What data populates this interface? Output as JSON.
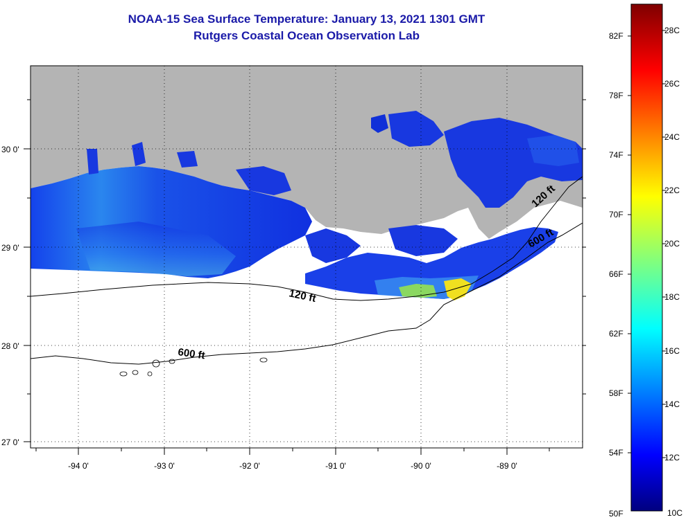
{
  "title": {
    "line1": "NOAA-15 Sea Surface Temperature:  January 13, 2021 1301 GMT",
    "line2": "Rutgers Coastal Ocean Observation Lab"
  },
  "map": {
    "lon_labels": [
      "-94 0'",
      "-93 0'",
      "-92 0'",
      "-91 0'",
      "-90 0'",
      "-89 0'"
    ],
    "lat_labels": [
      "30 0'",
      "29 0'",
      "28 0'",
      "27 0'"
    ],
    "contour_labels": [
      "120 ft",
      "600 ft",
      "120 ft",
      "600 ft"
    ],
    "colors": {
      "land": "#b4b4b4",
      "no_data": "#ffffff",
      "water_primary": "#1a3cf0"
    }
  },
  "colorbar": {
    "fahrenheit": [
      "82F",
      "78F",
      "74F",
      "70F",
      "66F",
      "62F",
      "58F",
      "54F",
      "50F"
    ],
    "celsius": [
      "28C",
      "26C",
      "24C",
      "22C",
      "20C",
      "18C",
      "16C",
      "14C",
      "12C",
      "10C"
    ],
    "range_c": [
      10,
      29
    ]
  }
}
